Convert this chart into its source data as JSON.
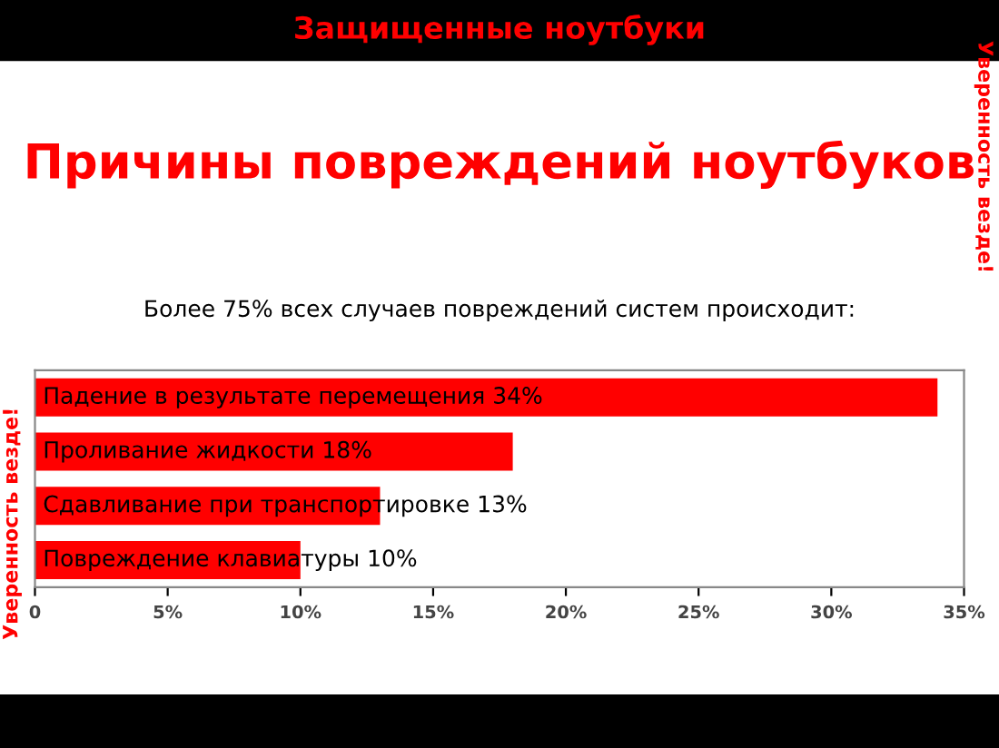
{
  "chart_data": {
    "type": "bar",
    "orientation": "horizontal",
    "title": "Причины повреждений ноутбуков",
    "subtitle": "Более 75% всех случаев повреждений систем происходит:",
    "categories": [
      "Падение в результате перемещения 34%",
      "Проливание жидкости 18%",
      "Сдавливание при транспортировке 13%",
      "Повреждение клавиатуры 10%"
    ],
    "values": [
      34,
      18,
      13,
      10
    ],
    "color": "#ff0000",
    "xlim": [
      0,
      35
    ],
    "xticks": [
      0,
      {
        "value": 5,
        "label": "5%"
      },
      {
        "value": 10,
        "label": "10%"
      },
      {
        "value": 15,
        "label": "15%"
      },
      {
        "value": 20,
        "label": "20%"
      },
      {
        "value": 25,
        "label": "25%"
      },
      {
        "value": 30,
        "label": "30%"
      },
      {
        "value": 35,
        "label": "35%"
      }
    ],
    "grid": false,
    "legend": false,
    "annotations": [
      "Защищенные ноутбуки",
      "Уверенность везде!",
      "Уверенность везде!"
    ]
  }
}
